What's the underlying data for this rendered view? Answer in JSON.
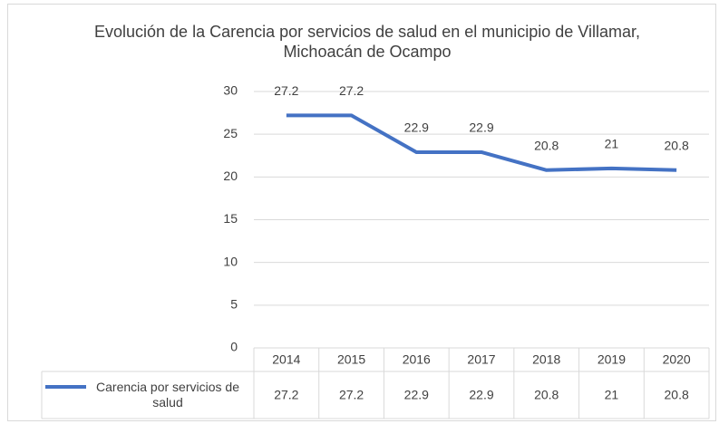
{
  "chart_data": {
    "type": "line",
    "title": "Evolución de la Carencia por servicios de salud en el municipio de Villamar, Michoacán de Ocampo",
    "categories": [
      "2014",
      "2015",
      "2016",
      "2017",
      "2018",
      "2019",
      "2020"
    ],
    "series": [
      {
        "name": "Carencia por servicios de salud",
        "color": "#4472c4",
        "values": [
          27.2,
          27.2,
          22.9,
          22.9,
          20.8,
          21,
          20.8
        ]
      }
    ],
    "ylim": [
      0,
      30
    ],
    "yticks": [
      0,
      5,
      10,
      15,
      20,
      25,
      30
    ],
    "grid": true,
    "data_table": true
  }
}
